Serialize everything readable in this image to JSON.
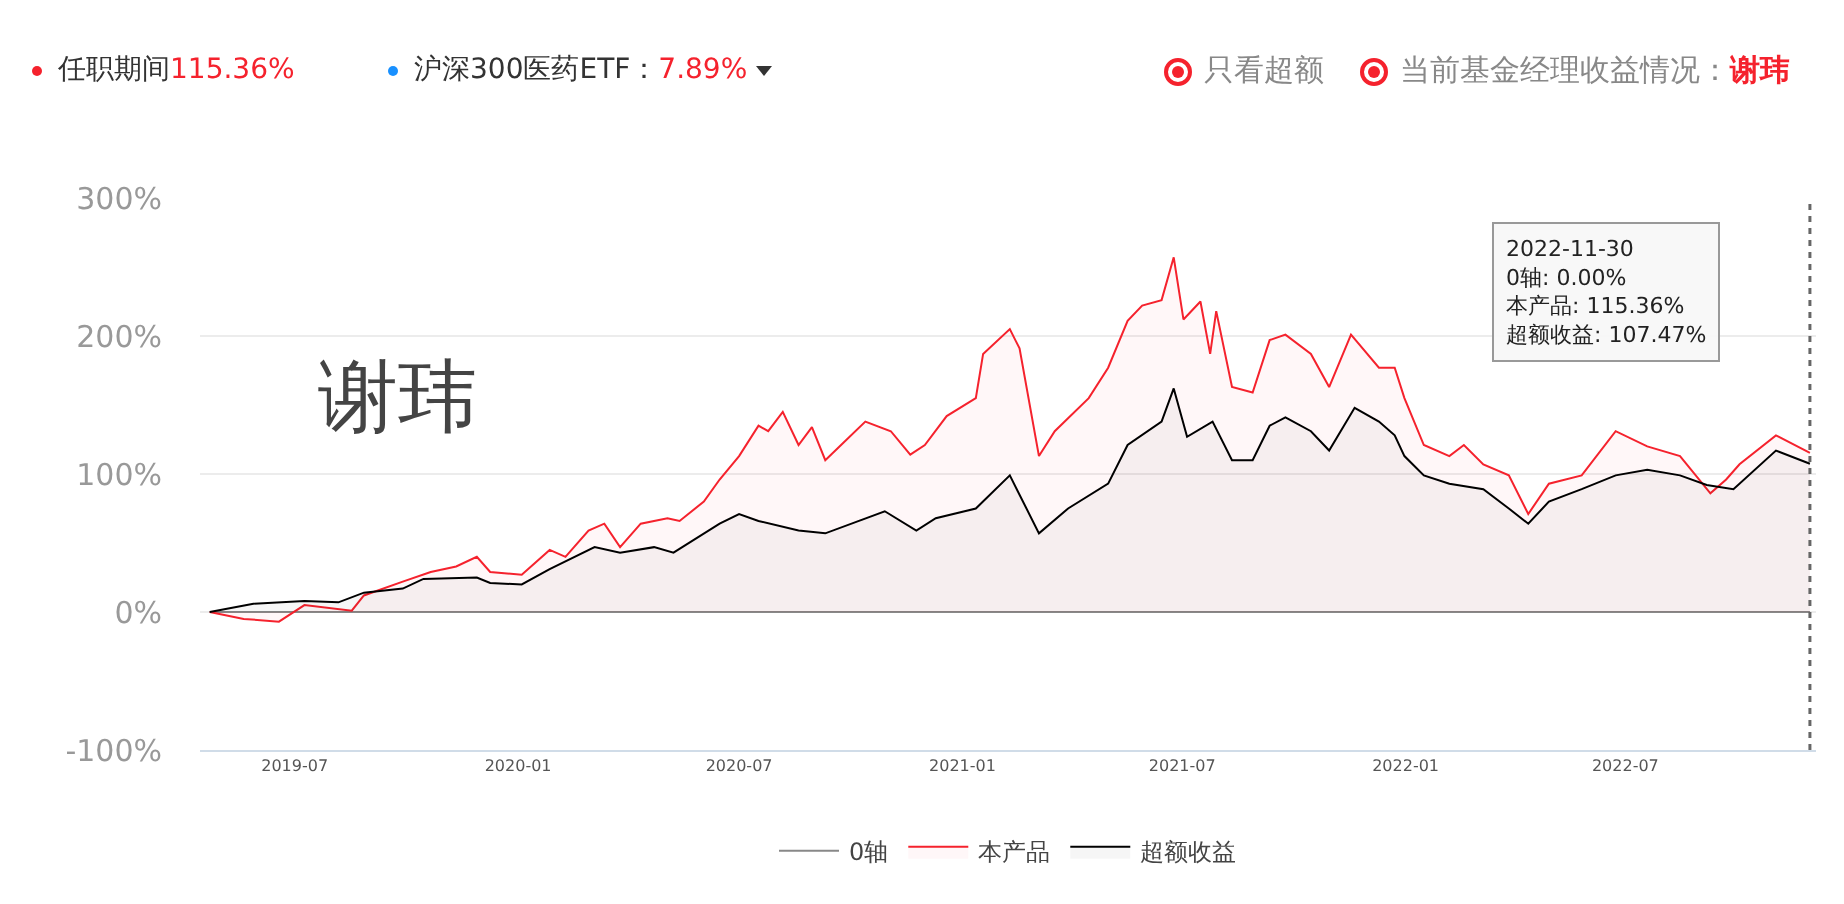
{
  "chart_data": {
    "type": "area",
    "annotations": [
      "任职期间",
      "115.36%",
      "沪深300医药ETF：",
      "7.89%",
      "只看超额",
      "当前基金经理收益情况：",
      "谢玮",
      "谢玮",
      "2022-11-30\n0轴: 0.00%\n本产品: 115.36%\n超额收益: 107.47%"
    ],
    "series": [
      {
        "name": "0轴",
        "color": "#888888",
        "type": "line",
        "x": [
          "2019-04-22",
          "2022-11-30"
        ],
        "values": [
          0,
          0
        ]
      },
      {
        "name": "本产品",
        "color": "#f5222d",
        "x": [
          "2019-04-22",
          "2019-05-20",
          "2019-06-18",
          "2019-07-09",
          "2019-08-17",
          "2019-08-27",
          "2019-09-28",
          "2019-10-21",
          "2019-11-11",
          "2019-11-28",
          "2019-12-09",
          "2020-01-04",
          "2020-01-27",
          "2020-02-09",
          "2020-02-28",
          "2020-03-12",
          "2020-03-25",
          "2020-04-11",
          "2020-05-03",
          "2020-05-13",
          "2020-06-02",
          "2020-06-15",
          "2020-07-01",
          "2020-07-17",
          "2020-07-25",
          "2020-08-06",
          "2020-08-19",
          "2020-08-30",
          "2020-09-10",
          "2020-09-23",
          "2020-10-13",
          "2020-11-03",
          "2020-11-19",
          "2020-12-01",
          "2020-12-19",
          "2021-01-12",
          "2021-01-18",
          "2021-02-09",
          "2021-02-17",
          "2021-03-05",
          "2021-03-18",
          "2021-04-15",
          "2021-05-01",
          "2021-05-17",
          "2021-05-29",
          "2021-06-14",
          "2021-06-24",
          "2021-07-02",
          "2021-07-16",
          "2021-07-24",
          "2021-07-29",
          "2021-08-11",
          "2021-08-28",
          "2021-09-11",
          "2021-09-24",
          "2021-10-15",
          "2021-10-30",
          "2021-11-17",
          "2021-12-10",
          "2021-12-23",
          "2021-12-31",
          "2022-01-16",
          "2022-02-06",
          "2022-02-18",
          "2022-03-06",
          "2022-03-27",
          "2022-04-12",
          "2022-04-29",
          "2022-05-26",
          "2022-06-23",
          "2022-07-19",
          "2022-08-15",
          "2022-09-09",
          "2022-09-22",
          "2022-10-03",
          "2022-11-02",
          "2022-11-30"
        ],
        "values": [
          0,
          -5,
          -7,
          5,
          1,
          12,
          22,
          29,
          33,
          40,
          29,
          27,
          45,
          40,
          59,
          64,
          47,
          64,
          68,
          66,
          80,
          96,
          113,
          135,
          131,
          145,
          121,
          134,
          110,
          121,
          138,
          131,
          114,
          121,
          142,
          155,
          187,
          205,
          191,
          113,
          131,
          155,
          177,
          211,
          222,
          226,
          257,
          212,
          225,
          187,
          218,
          163,
          159,
          197,
          201,
          187,
          163,
          201,
          177,
          177,
          155,
          121,
          113,
          121,
          107,
          99,
          71,
          93,
          99,
          131,
          120,
          113,
          86,
          96,
          107,
          128,
          115.36
        ]
      },
      {
        "name": "超额收益",
        "color": "#000000",
        "x": [
          "2019-04-22",
          "2019-05-28",
          "2019-07-09",
          "2019-08-06",
          "2019-08-27",
          "2019-09-28",
          "2019-10-15",
          "2019-11-28",
          "2019-12-09",
          "2020-01-04",
          "2020-01-27",
          "2020-03-04",
          "2020-03-25",
          "2020-04-22",
          "2020-05-08",
          "2020-06-15",
          "2020-07-01",
          "2020-07-17",
          "2020-08-19",
          "2020-09-10",
          "2020-10-29",
          "2020-11-24",
          "2020-12-10",
          "2021-01-12",
          "2021-02-09",
          "2021-03-05",
          "2021-03-29",
          "2021-05-01",
          "2021-05-17",
          "2021-06-14",
          "2021-06-24",
          "2021-07-05",
          "2021-07-26",
          "2021-08-11",
          "2021-08-28",
          "2021-09-11",
          "2021-09-24",
          "2021-10-15",
          "2021-10-30",
          "2021-11-20",
          "2021-12-10",
          "2021-12-23",
          "2021-12-31",
          "2022-01-16",
          "2022-02-06",
          "2022-03-06",
          "2022-03-27",
          "2022-04-12",
          "2022-04-29",
          "2022-05-26",
          "2022-06-23",
          "2022-07-19",
          "2022-08-15",
          "2022-09-06",
          "2022-09-28",
          "2022-11-02",
          "2022-11-30"
        ],
        "values": [
          0,
          6,
          8,
          7,
          14,
          17,
          24,
          25,
          21,
          20,
          31,
          47,
          43,
          47,
          43,
          64,
          71,
          66,
          59,
          57,
          73,
          59,
          68,
          75,
          99,
          57,
          75,
          93,
          121,
          138,
          162,
          127,
          138,
          110,
          110,
          135,
          141,
          131,
          117,
          148,
          138,
          128,
          113,
          99,
          93,
          89,
          75,
          64,
          80,
          89,
          99,
          103,
          99,
          92,
          89,
          117,
          107.47
        ]
      }
    ],
    "xlim": [
      "2019-04-14",
      "2022-12-05"
    ],
    "xticks": [
      "2019-07",
      "2020-01",
      "2020-07",
      "2021-01",
      "2021-07",
      "2022-01",
      "2022-07"
    ],
    "ylim": [
      -100,
      300
    ],
    "yticks": [
      {
        "value": -100,
        "label": "-100%"
      },
      {
        "value": 0,
        "label": "0%"
      },
      {
        "value": 100,
        "label": "100%"
      },
      {
        "value": 200,
        "label": "200%"
      },
      {
        "value": 300,
        "label": "300%"
      }
    ],
    "ref_lines": [
      {
        "axis": "x",
        "value": "2022-11-30",
        "color": "#666666",
        "line_style": "dotted"
      }
    ],
    "grid": "y",
    "legend": "bottom",
    "marker": "none",
    "line_style": "solid"
  }
}
